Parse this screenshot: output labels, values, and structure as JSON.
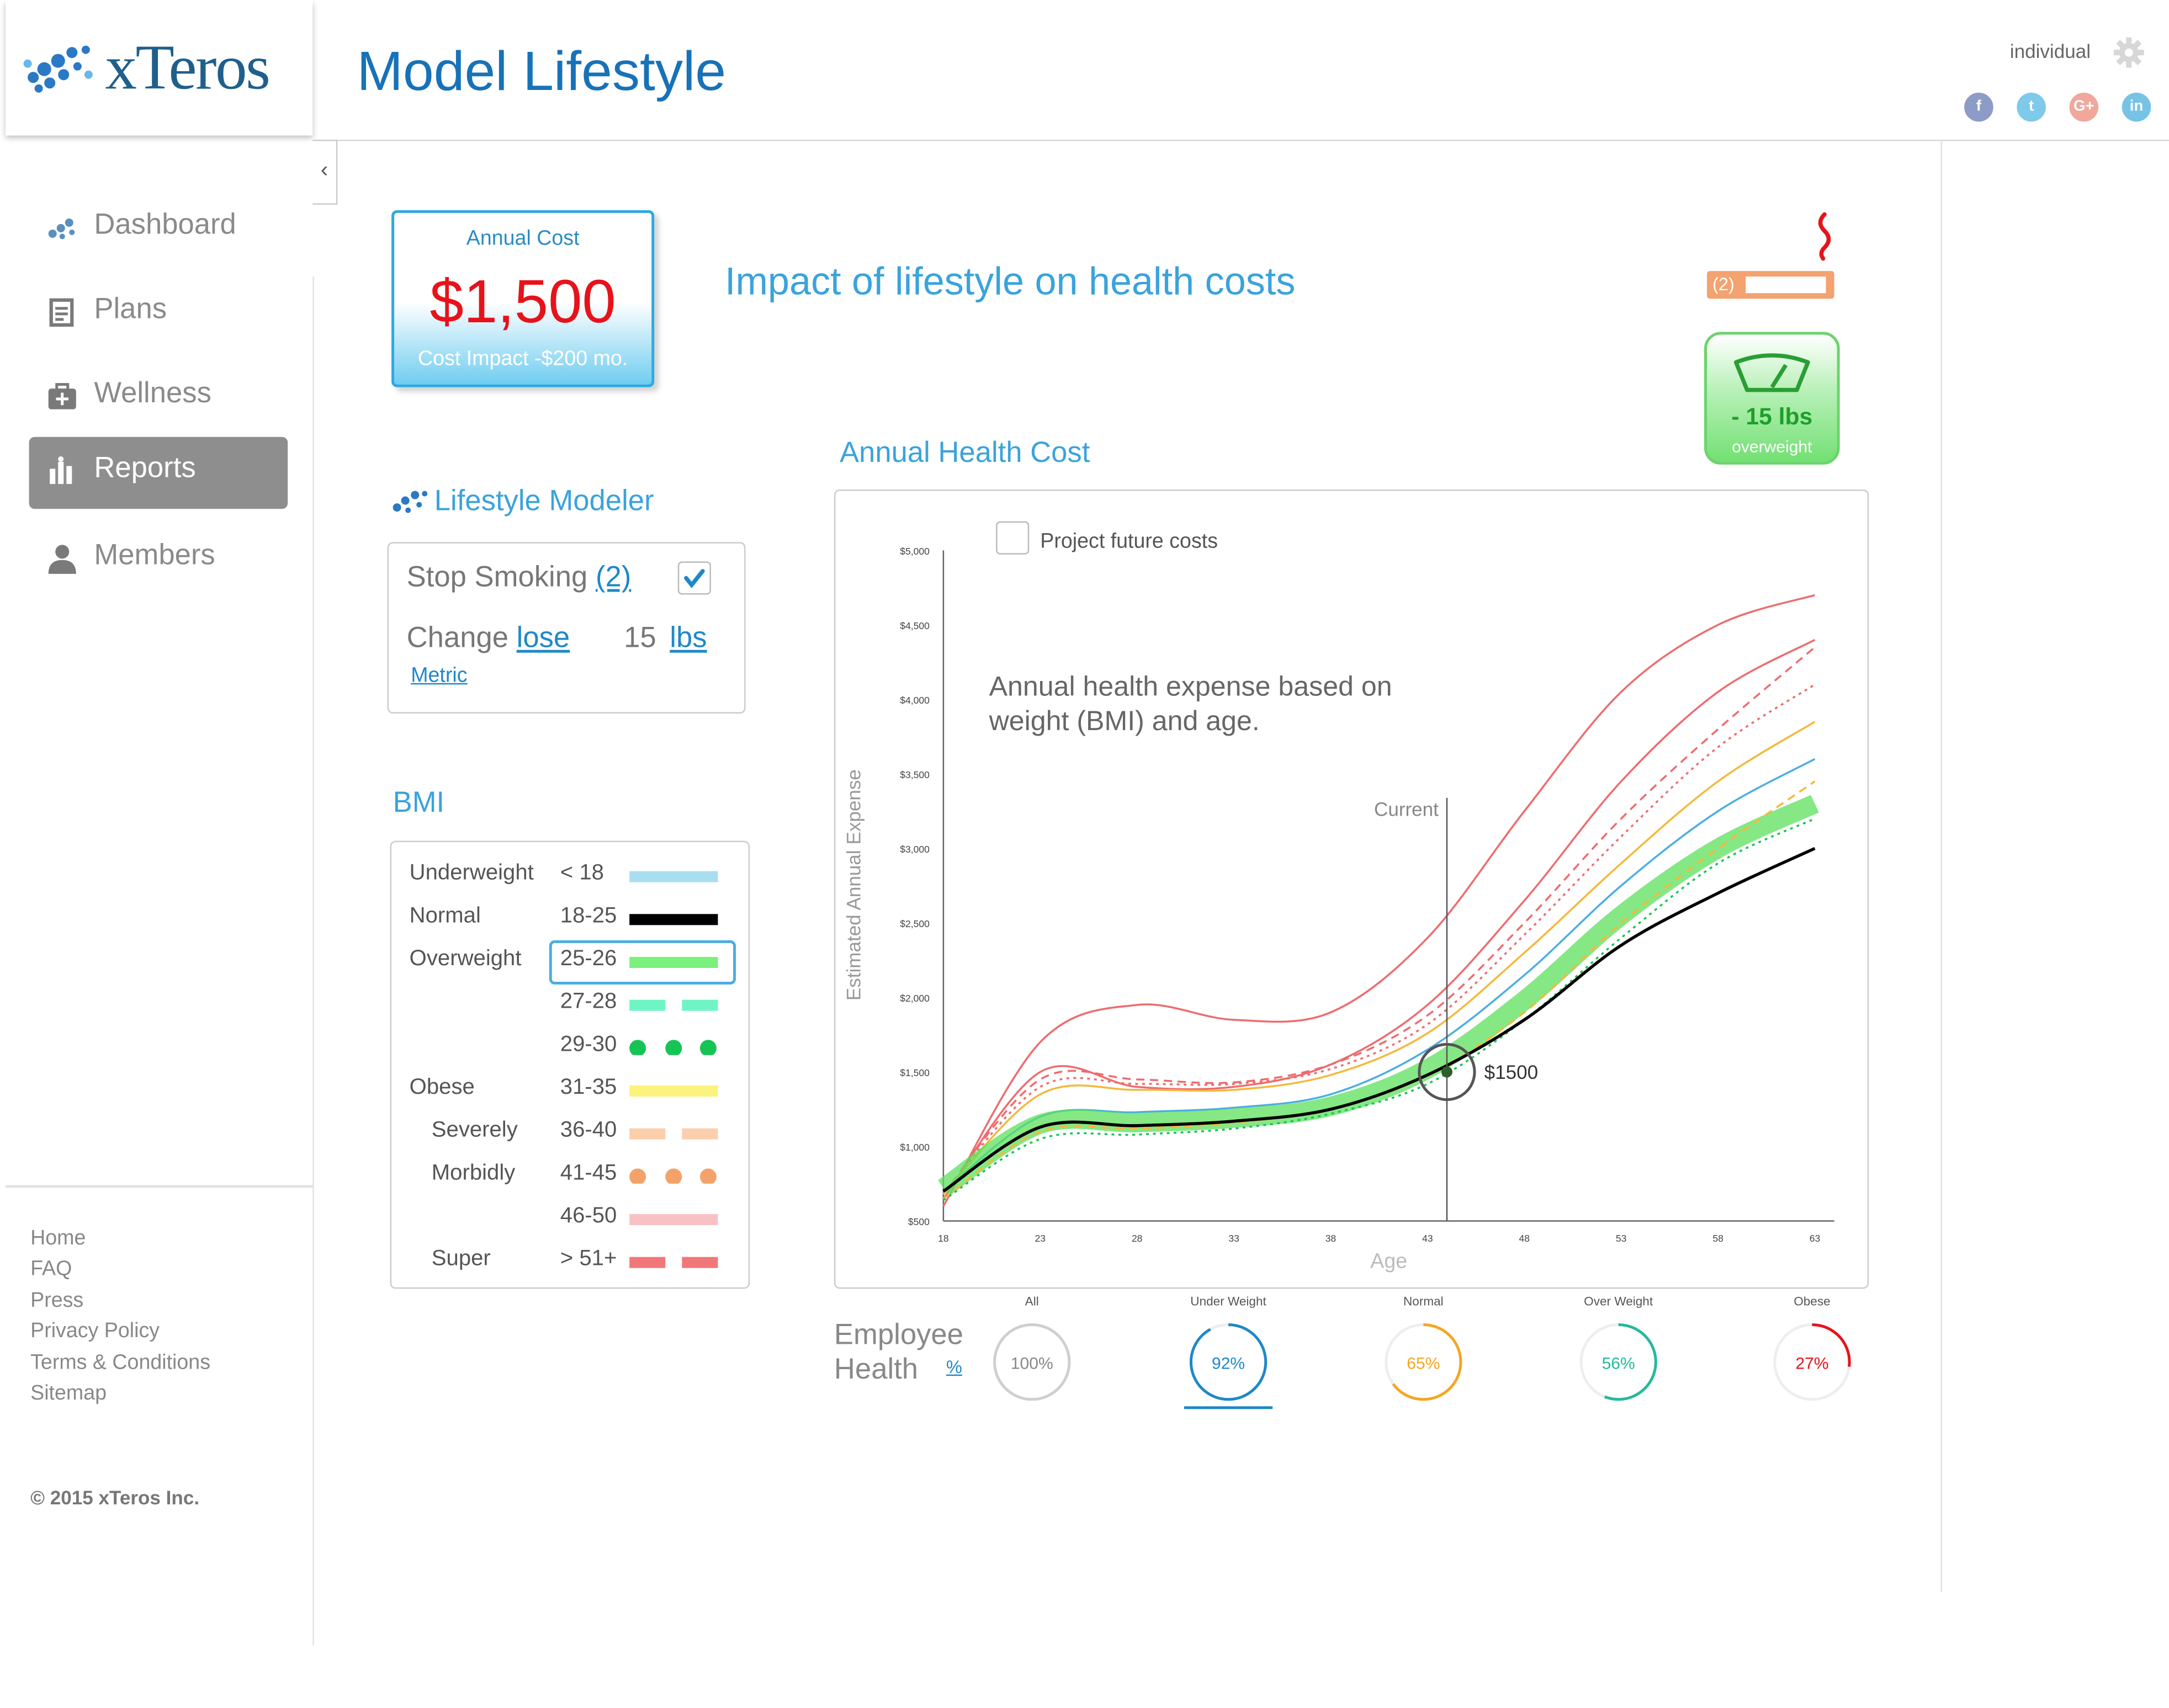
{
  "app": {
    "logo_text": "xTeros",
    "page_title": "Model Lifestyle",
    "user_label": "individual"
  },
  "social": [
    {
      "name": "facebook-icon",
      "glyph": "f",
      "color": "#8c9cc6"
    },
    {
      "name": "twitter-icon",
      "glyph": "t",
      "color": "#7fc9ea"
    },
    {
      "name": "google-plus-icon",
      "glyph": "G+",
      "color": "#f0a79c"
    },
    {
      "name": "linkedin-icon",
      "glyph": "in",
      "color": "#76c3e6"
    }
  ],
  "sidebar": {
    "items": [
      {
        "label": "Dashboard",
        "icon": "xteros-icon",
        "active": false
      },
      {
        "label": "Plans",
        "icon": "clipboard-icon",
        "active": false
      },
      {
        "label": "Wellness",
        "icon": "first-aid-kit-icon",
        "active": false
      },
      {
        "label": "Reports",
        "icon": "bar-chart-icon",
        "active": true
      },
      {
        "label": "Members",
        "icon": "person-icon",
        "active": false
      }
    ],
    "footer_links": [
      "Home",
      "FAQ",
      "Press",
      "Privacy Policy",
      "Terms & Conditions",
      "Sitemap"
    ],
    "copyright": "© 2015 xTeros Inc."
  },
  "cost_card": {
    "label": "Annual Cost",
    "value": "$1,500",
    "impact": "Cost Impact -$200 mo."
  },
  "impact_title": "Impact of lifestyle on health costs",
  "indicators": {
    "smoking_count": "(2)",
    "weight_change": "- 15 lbs",
    "weight_status": "overweight"
  },
  "modeler": {
    "title": "Lifestyle Modeler",
    "stop_smoking_label": "Stop Smoking",
    "stop_smoking_count": "(2)",
    "stop_smoking_checked": true,
    "change_label": "Change",
    "change_direction": "lose",
    "change_amount": "15",
    "change_unit": "lbs",
    "metric_link": "Metric"
  },
  "bmi": {
    "title": "BMI",
    "rows": [
      {
        "name": "Underweight",
        "range": "< 18",
        "color": "#a8dff0",
        "style": "solid",
        "indent": false
      },
      {
        "name": "Normal",
        "range": "18-25",
        "color": "#000000",
        "style": "solid",
        "indent": false
      },
      {
        "name": "Overweight",
        "range": "25-26",
        "color": "#7cf07c",
        "style": "solid",
        "indent": false,
        "selected": true
      },
      {
        "name": "",
        "range": "27-28",
        "color": "#6ff5c4",
        "style": "dash",
        "indent": false
      },
      {
        "name": "",
        "range": "29-30",
        "color": "#16c456",
        "style": "dots",
        "indent": false
      },
      {
        "name": "Obese",
        "range": "31-35",
        "color": "#fbf37b",
        "style": "solid",
        "indent": false
      },
      {
        "name": "Severely",
        "range": "36-40",
        "color": "#fbcfae",
        "style": "dash",
        "indent": true
      },
      {
        "name": "Morbidly",
        "range": "41-45",
        "color": "#f3a36a",
        "style": "dots",
        "indent": true
      },
      {
        "name": "",
        "range": "46-50",
        "color": "#f8c2c4",
        "style": "solid",
        "indent": false
      },
      {
        "name": "Super",
        "range": "> 51+",
        "color": "#f2777a",
        "style": "dash",
        "indent": true
      }
    ]
  },
  "chart_section": {
    "title": "Annual Health Cost",
    "project_future_label": "Project future costs",
    "annotation": "Annual health expense based on weight (BMI) and age.",
    "current_label": "Current",
    "marker_label": "$1500"
  },
  "chart_data": {
    "type": "line",
    "title": "Annual Health Cost",
    "xlabel": "Age",
    "ylabel": "Estimated Annual Expense",
    "xlim": [
      18,
      64
    ],
    "ylim": [
      500,
      5000
    ],
    "x_ticks": [
      "18",
      "23",
      "28",
      "33",
      "38",
      "43",
      "48",
      "53",
      "58",
      "63"
    ],
    "y_ticks": [
      "$500",
      "$1,000",
      "$1,500",
      "$2,000",
      "$2,500",
      "$3,000",
      "$3,500",
      "$4,000",
      "$4,500",
      "$5,000"
    ],
    "current_age": 44,
    "marker": {
      "x": 44,
      "y": 1500
    },
    "x": [
      18,
      23,
      28,
      33,
      38,
      43,
      48,
      53,
      58,
      63
    ],
    "series": [
      {
        "name": "Super",
        "color": "#ee6b6e",
        "style": "solid",
        "values": [
          600,
          1700,
          1950,
          1850,
          1900,
          2400,
          3250,
          4050,
          4500,
          4700
        ]
      },
      {
        "name": "46-50",
        "color": "#ee6b6e",
        "style": "solid",
        "values": [
          650,
          1500,
          1400,
          1400,
          1550,
          1950,
          2650,
          3450,
          4050,
          4400
        ]
      },
      {
        "name": "Morbidly",
        "color": "#ee6b6e",
        "style": "dash",
        "values": [
          680,
          1450,
          1450,
          1430,
          1550,
          1880,
          2500,
          3200,
          3800,
          4350
        ]
      },
      {
        "name": "Severely",
        "color": "#ee6b6e",
        "style": "dots",
        "values": [
          680,
          1400,
          1420,
          1420,
          1520,
          1820,
          2420,
          3080,
          3680,
          4100
        ]
      },
      {
        "name": "Obese",
        "color": "#f5b83a",
        "style": "solid",
        "values": [
          680,
          1350,
          1380,
          1380,
          1480,
          1760,
          2300,
          2900,
          3450,
          3850
        ]
      },
      {
        "name": "Underweight",
        "color": "#4aaee3",
        "style": "solid",
        "values": [
          700,
          1200,
          1230,
          1260,
          1350,
          1650,
          2150,
          2750,
          3250,
          3600
        ]
      },
      {
        "name": "Overweight",
        "color": "#5ce05c",
        "style": "band",
        "values": [
          720,
          1150,
          1160,
          1190,
          1270,
          1520,
          1980,
          2550,
          3000,
          3300
        ]
      },
      {
        "name": "27-28",
        "color": "#f5b83a",
        "style": "dash",
        "values": [
          650,
          1100,
          1120,
          1160,
          1250,
          1480,
          1900,
          2500,
          3000,
          3450
        ]
      },
      {
        "name": "29-30",
        "color": "#16c456",
        "style": "dots",
        "values": [
          640,
          1050,
          1080,
          1120,
          1220,
          1420,
          1850,
          2400,
          2900,
          3200
        ]
      },
      {
        "name": "Normal",
        "color": "#000000",
        "style": "solid",
        "values": [
          700,
          1130,
          1140,
          1170,
          1250,
          1480,
          1850,
          2350,
          2700,
          3000
        ]
      }
    ]
  },
  "employee_health": {
    "label": "Employee Health",
    "pct_link": "%",
    "gauges": [
      {
        "label": "All",
        "pct": "100%",
        "value": 100,
        "color": "#cfcfcf",
        "text_color": "#888888"
      },
      {
        "label": "Under Weight",
        "pct": "92%",
        "value": 92,
        "color": "#1e88c8",
        "text_color": "#1e88c8",
        "selected": true
      },
      {
        "label": "Normal",
        "pct": "65%",
        "value": 65,
        "color": "#f5a623",
        "text_color": "#f5a623"
      },
      {
        "label": "Over Weight",
        "pct": "56%",
        "value": 56,
        "color": "#26b99a",
        "text_color": "#26b99a"
      },
      {
        "label": "Obese",
        "pct": "27%",
        "value": 27,
        "color": "#e8121a",
        "text_color": "#e8121a"
      }
    ]
  }
}
